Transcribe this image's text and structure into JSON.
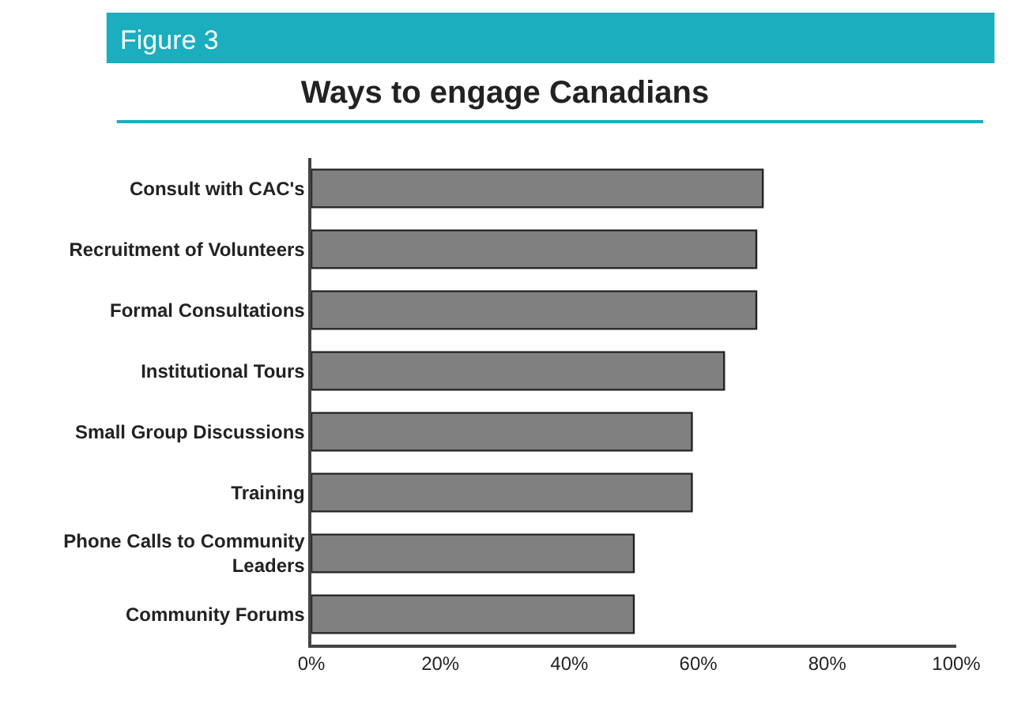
{
  "chart_data": {
    "type": "bar",
    "orientation": "horizontal",
    "title": "Ways to engage Canadians",
    "annotations": [
      "Figure 3"
    ],
    "categories": [
      "Consult with CAC's",
      "Recruitment of Volunteers",
      "Formal Consultations",
      "Institutional Tours",
      "Small Group Discussions",
      "Training",
      "Phone Calls to Community Leaders",
      "Community Forums"
    ],
    "values": [
      70,
      69,
      69,
      64,
      59,
      59,
      50,
      50
    ],
    "color": "#808080",
    "xlim": [
      0,
      100
    ],
    "xticks": [
      {
        "value": 0,
        "label": "0%"
      },
      {
        "value": 20,
        "label": "20%"
      },
      {
        "value": 40,
        "label": "40%"
      },
      {
        "value": 60,
        "label": "60%"
      },
      {
        "value": 80,
        "label": "80%"
      },
      {
        "value": 100,
        "label": "100%"
      }
    ],
    "tick_labels": true
  }
}
